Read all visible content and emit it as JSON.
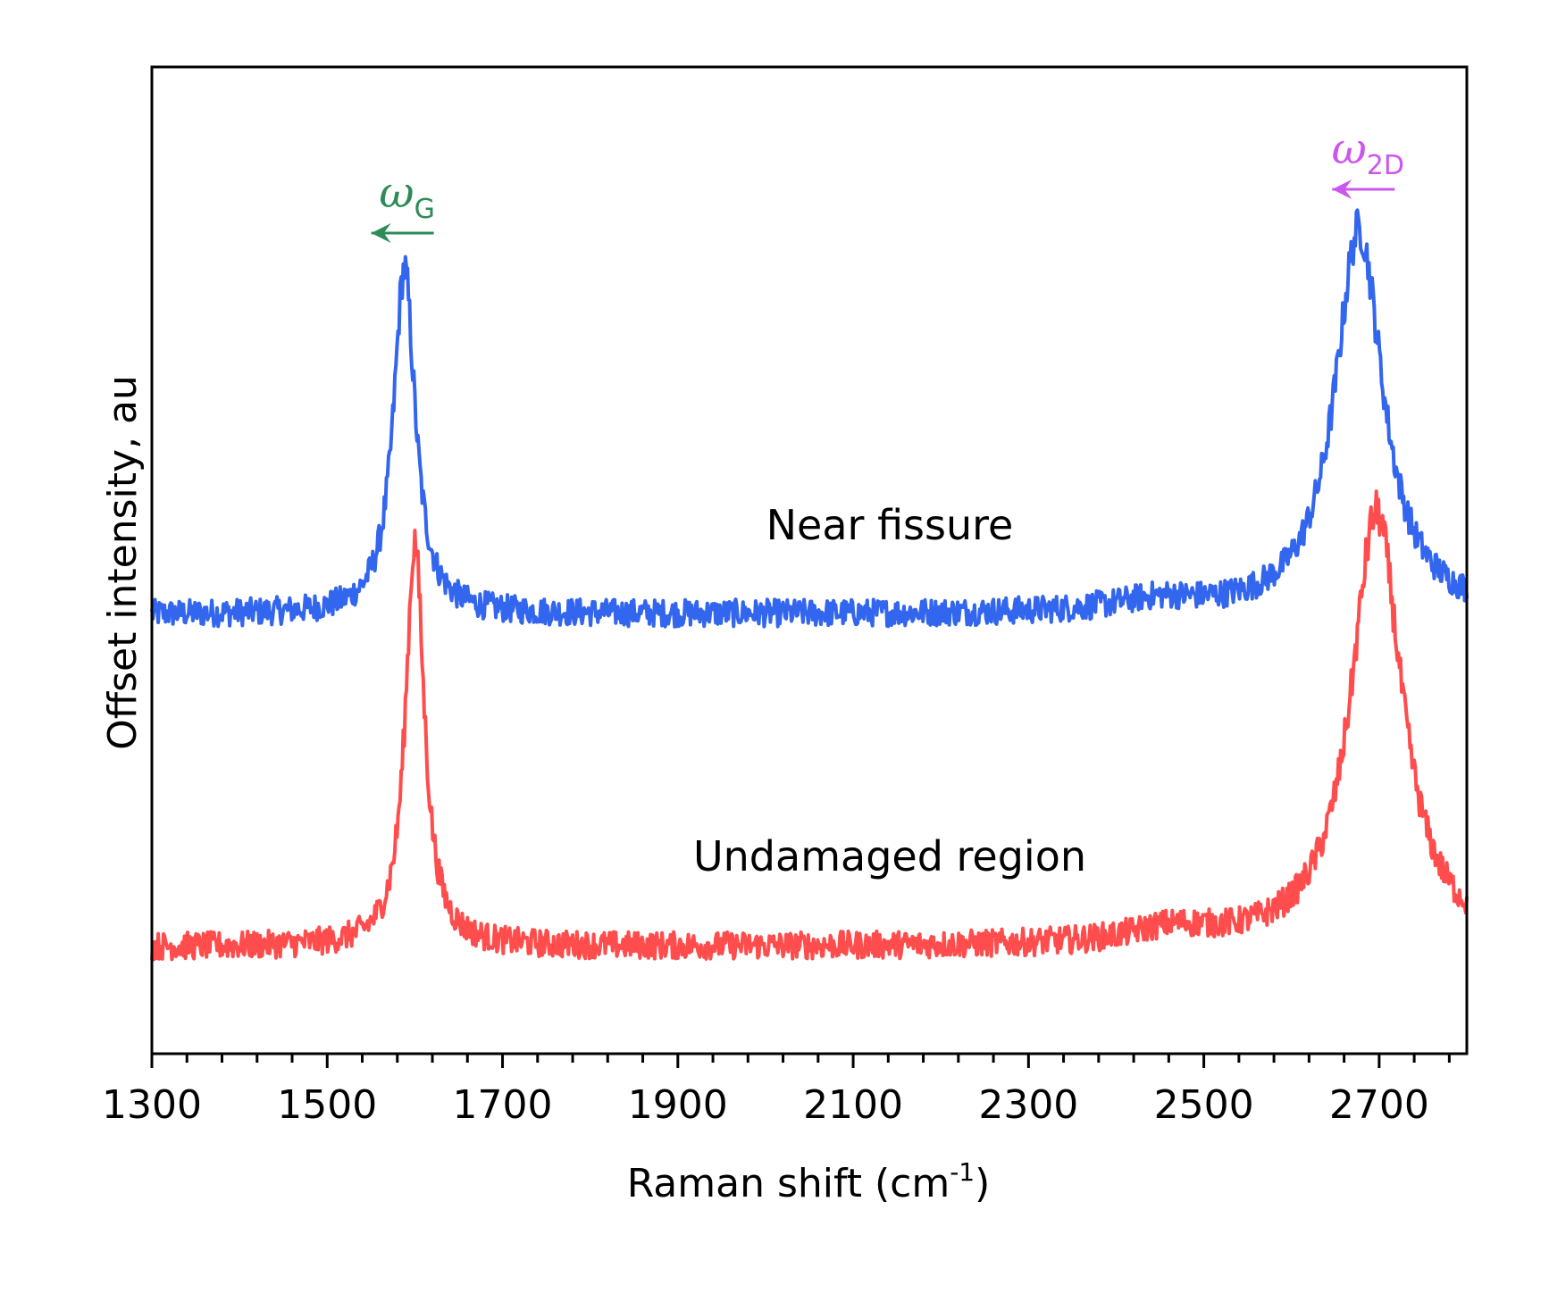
{
  "chart_data": {
    "type": "line",
    "xlabel": "Raman shift (cm",
    "xlabel_sup": "-1",
    "xlabel_close": ")",
    "ylabel": "Offset intensity, au",
    "xlim": [
      1300,
      2800
    ],
    "ylim": [
      0,
      10
    ],
    "x_ticks": [
      1300,
      1500,
      1700,
      1900,
      2100,
      2300,
      2500,
      2700
    ],
    "x_tick_labels": [
      "1300",
      "1500",
      "1700",
      "1900",
      "2100",
      "2300",
      "2500",
      "2700"
    ],
    "x_minor_tick_step": 40,
    "y_ticks_shown": false,
    "grid": false,
    "legend": "none",
    "series": [
      {
        "name": "Near fissure",
        "color": "#3366ee",
        "baseline": 4.45,
        "noise": 0.28,
        "peaks": [
          {
            "center": 1588,
            "height": 3.5,
            "width": 15
          },
          {
            "center": 2677,
            "height": 3.9,
            "width": 33
          },
          {
            "center": 2448,
            "height": 0.12,
            "width": 60
          }
        ]
      },
      {
        "name": "Undamaged region",
        "color": "#ff4d4d",
        "baseline": 1.08,
        "noise": 0.28,
        "peaks": [
          {
            "center": 1600,
            "height": 4.1,
            "width": 13
          },
          {
            "center": 2697,
            "height": 4.4,
            "width": 35
          },
          {
            "center": 2465,
            "height": 0.15,
            "width": 60
          }
        ]
      }
    ],
    "annotations": [
      {
        "id": "omega-g",
        "symbol": "ω",
        "subscript": "G",
        "color": "#2e8b57",
        "x": 1588,
        "arrow": "left"
      },
      {
        "id": "omega-2d",
        "symbol": "ω",
        "subscript": "2D",
        "color": "#cc55ee",
        "x": 2677,
        "arrow": "left"
      }
    ]
  }
}
